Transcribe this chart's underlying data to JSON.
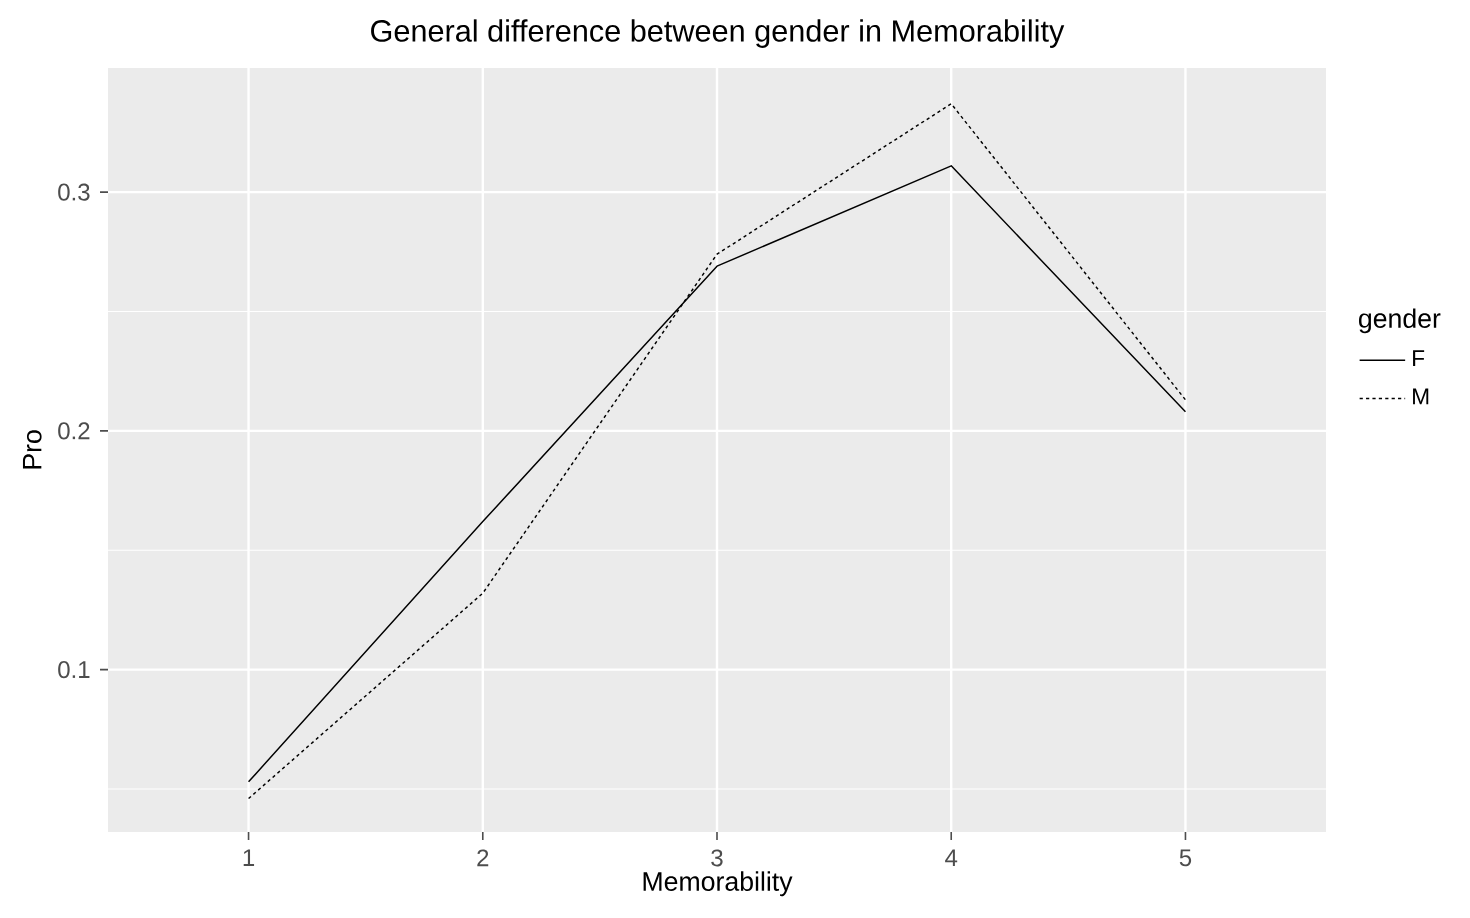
{
  "chart_data": {
    "type": "line",
    "title": "General difference between gender in Memorability",
    "xlabel": "Memorability",
    "ylabel": "Pro",
    "legend_title": "gender",
    "x": [
      1,
      2,
      3,
      4,
      5
    ],
    "series": [
      {
        "name": "F",
        "color": "#000000",
        "line_style": "solid",
        "values": [
          0.053,
          0.162,
          0.269,
          0.311,
          0.208
        ]
      },
      {
        "name": "M",
        "color": "#000000",
        "line_style": "dotted",
        "values": [
          0.046,
          0.132,
          0.274,
          0.337,
          0.213
        ]
      }
    ],
    "xlim": [
      0.4,
      5.6
    ],
    "ylim": [
      0.032,
      0.352
    ],
    "xticks": [
      1,
      2,
      3,
      4,
      5
    ],
    "yticks": [
      {
        "value": 0.05,
        "label": null
      },
      0.1,
      {
        "value": 0.15,
        "label": null
      },
      0.2,
      {
        "value": 0.25,
        "label": null
      },
      0.3
    ],
    "grid": true,
    "legend": "right",
    "marker": "none"
  }
}
